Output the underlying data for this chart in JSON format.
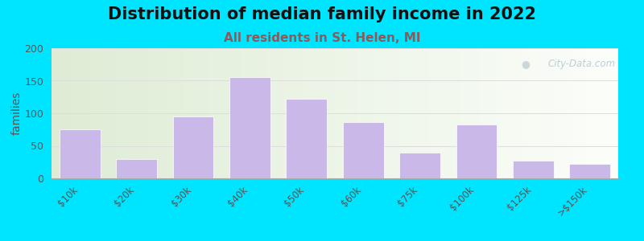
{
  "title": "Distribution of median family income in 2022",
  "subtitle": "All residents in St. Helen, MI",
  "categories": [
    "$10k",
    "$20k",
    "$30k",
    "$40k",
    "$50k",
    "$60k",
    "$75k",
    "$100k",
    "$125k",
    ">$150k"
  ],
  "values": [
    75,
    30,
    95,
    155,
    122,
    87,
    40,
    83,
    27,
    22
  ],
  "bar_color": "#c9b8e8",
  "bar_edge_color": "#ffffff",
  "ylabel": "families",
  "ylim": [
    0,
    200
  ],
  "yticks": [
    0,
    50,
    100,
    150,
    200
  ],
  "title_fontsize": 15,
  "subtitle_fontsize": 11,
  "subtitle_color": "#8b5a5a",
  "background_outer": "#00e5ff",
  "bg_color_left": "#deecd5",
  "bg_color_right": "#f5f8f2",
  "watermark_text": "City-Data.com",
  "watermark_color": "#b8c8d4",
  "tick_color": "#555555",
  "grid_color": "#dddddd"
}
